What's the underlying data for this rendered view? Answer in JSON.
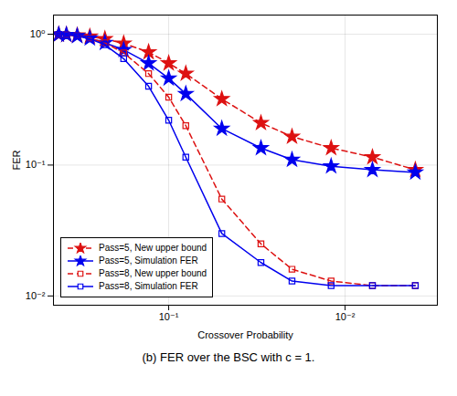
{
  "chart_data": {
    "type": "line",
    "title": "(b) FER over the BSC with c = 1.",
    "xlabel": "Crossover Probability",
    "ylabel": "FER",
    "log": true,
    "grid": true,
    "legend": "lower left",
    "xlim": [
      0.45,
      0.003
    ],
    "ylim": [
      0.0085,
      1.4
    ],
    "xticks": [
      {
        "value": 0.1,
        "label": "10⁻¹"
      },
      {
        "value": 0.01,
        "label": "10⁻²"
      }
    ],
    "yticks": [
      {
        "value": 0.01,
        "label": "10⁻²"
      },
      {
        "value": 0.1,
        "label": "10⁻¹"
      },
      {
        "value": 1,
        "label": "10⁰"
      }
    ],
    "x": [
      0.42,
      0.38,
      0.33,
      0.28,
      0.23,
      0.18,
      0.13,
      0.1,
      0.08,
      0.05,
      0.03,
      0.02,
      0.012,
      0.007,
      0.004
    ],
    "series": [
      {
        "name": "Pass=5, New upper bound",
        "color": "#dd1111",
        "marker": "star",
        "line_style": "dashed",
        "values": [
          0.995,
          0.99,
          0.98,
          0.96,
          0.92,
          0.85,
          0.73,
          0.6,
          0.5,
          0.32,
          0.21,
          0.165,
          0.135,
          0.115,
          0.092
        ]
      },
      {
        "name": "Pass=5, Simulation FER",
        "color": "#0000ee",
        "marker": "star",
        "line_style": "solid",
        "values": [
          0.995,
          0.99,
          0.97,
          0.93,
          0.86,
          0.76,
          0.6,
          0.46,
          0.35,
          0.19,
          0.135,
          0.11,
          0.098,
          0.092,
          0.088
        ]
      },
      {
        "name": "Pass=8, New upper bound",
        "color": "#dd1111",
        "marker": "square",
        "line_style": "dashed",
        "values": [
          0.995,
          0.99,
          0.97,
          0.93,
          0.86,
          0.72,
          0.5,
          0.33,
          0.2,
          0.055,
          0.025,
          0.016,
          0.013,
          0.012,
          0.012
        ]
      },
      {
        "name": "Pass=8, Simulation FER",
        "color": "#0000ee",
        "marker": "square",
        "line_style": "solid",
        "values": [
          0.995,
          0.99,
          0.97,
          0.92,
          0.83,
          0.65,
          0.4,
          0.22,
          0.115,
          0.03,
          0.018,
          0.013,
          0.012,
          0.012,
          0.012
        ]
      }
    ]
  }
}
